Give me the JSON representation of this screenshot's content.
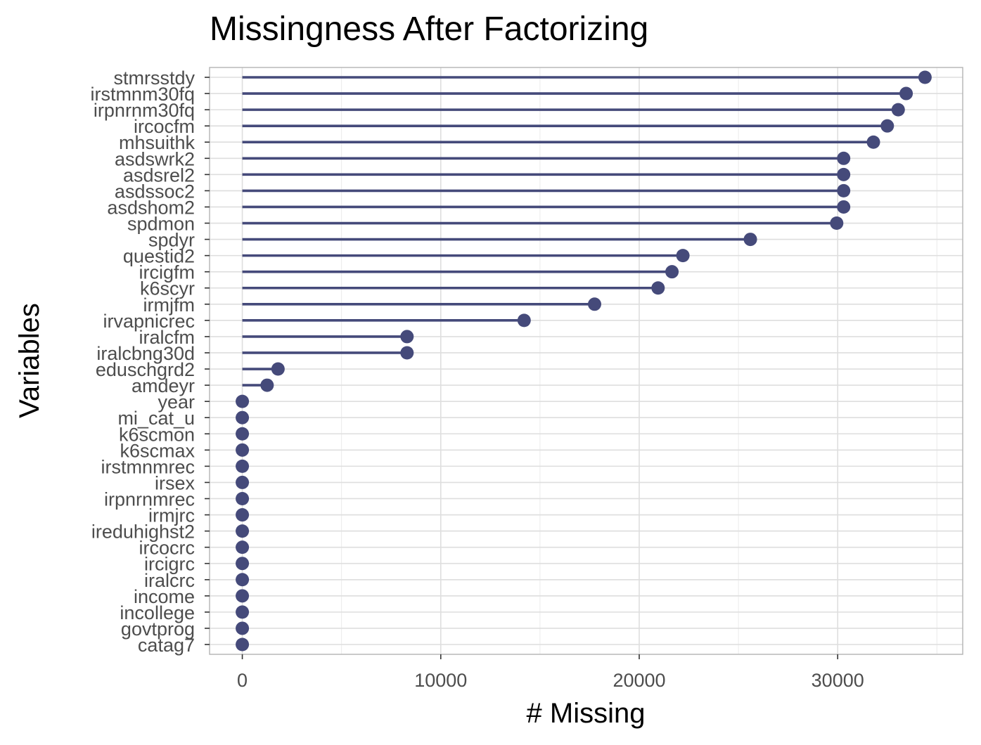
{
  "chart_data": {
    "type": "lollipop",
    "title": "Missingness After Factorizing",
    "xlabel": "# Missing",
    "ylabel": "Variables",
    "xlim": [
      -1650,
      36300
    ],
    "xticks": [
      0,
      10000,
      20000,
      30000
    ],
    "grid": true,
    "color": "#454a7a",
    "categories": [
      "stmrsstdy",
      "irstmnm30fq",
      "irpnrnm30fq",
      "ircocfm",
      "mhsuithk",
      "asdswrk2",
      "asdsrel2",
      "asdssoc2",
      "asdshom2",
      "spdmon",
      "spdyr",
      "questid2",
      "ircigfm",
      "k6scyr",
      "irmjfm",
      "irvapnicrec",
      "iralcfm",
      "iralcbng30d",
      "eduschgrd2",
      "amdeyr",
      "year",
      "mi_cat_u",
      "k6scmon",
      "k6scmax",
      "irstmnmrec",
      "irsex",
      "irpnrnmrec",
      "irmjrc",
      "ireduhighst2",
      "ircocrc",
      "ircigrc",
      "iralcrc",
      "income",
      "incollege",
      "govtprog",
      "catag7"
    ],
    "values": [
      34400,
      33450,
      33050,
      32500,
      31800,
      30300,
      30300,
      30300,
      30300,
      29950,
      25600,
      22200,
      21650,
      20950,
      17750,
      14200,
      8300,
      8300,
      1800,
      1250,
      0,
      0,
      0,
      0,
      0,
      0,
      0,
      0,
      0,
      0,
      0,
      0,
      0,
      0,
      0,
      0
    ]
  }
}
